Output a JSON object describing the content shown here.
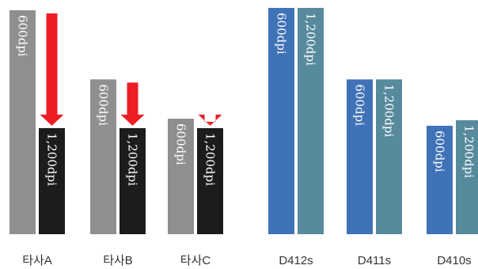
{
  "chart_data": {
    "type": "bar",
    "ylim": [
      0,
      290
    ],
    "grid": false,
    "legend": "none",
    "categories": [
      "타사A",
      "타사B",
      "타사C",
      "D412s",
      "D411s",
      "D410s"
    ],
    "groups": [
      {
        "category": "타사A",
        "bars": [
          {
            "label": "600dpi",
            "value": 285,
            "color": "#8f8f8f"
          },
          {
            "label": "1,200dpi",
            "value": 135,
            "color": "#1c1c1c"
          }
        ],
        "arrow": true
      },
      {
        "category": "타사B",
        "bars": [
          {
            "label": "600dpi",
            "value": 197,
            "color": "#8f8f8f"
          },
          {
            "label": "1,200dpi",
            "value": 135,
            "color": "#1c1c1c"
          }
        ],
        "arrow": true
      },
      {
        "category": "타사C",
        "bars": [
          {
            "label": "600dpi",
            "value": 147,
            "color": "#8f8f8f"
          },
          {
            "label": "1,200dpi",
            "value": 135,
            "color": "#1c1c1c"
          }
        ],
        "arrow": true
      },
      {
        "category": "D412s",
        "bars": [
          {
            "label": "600dpi",
            "value": 288,
            "color": "#4072b8"
          },
          {
            "label": "1,200dpi",
            "value": 288,
            "color": "#568a9c"
          }
        ],
        "arrow": false
      },
      {
        "category": "D411s",
        "bars": [
          {
            "label": "600dpi",
            "value": 197,
            "color": "#4072b8"
          },
          {
            "label": "1,200dpi",
            "value": 197,
            "color": "#568a9c"
          }
        ],
        "arrow": false
      },
      {
        "category": "D410s",
        "bars": [
          {
            "label": "600dpi",
            "value": 138,
            "color": "#4072b8"
          },
          {
            "label": "1,200dpi",
            "value": 145,
            "color": "#568a9c"
          }
        ],
        "arrow": false
      }
    ],
    "arrow_color": "#ee1c25"
  }
}
